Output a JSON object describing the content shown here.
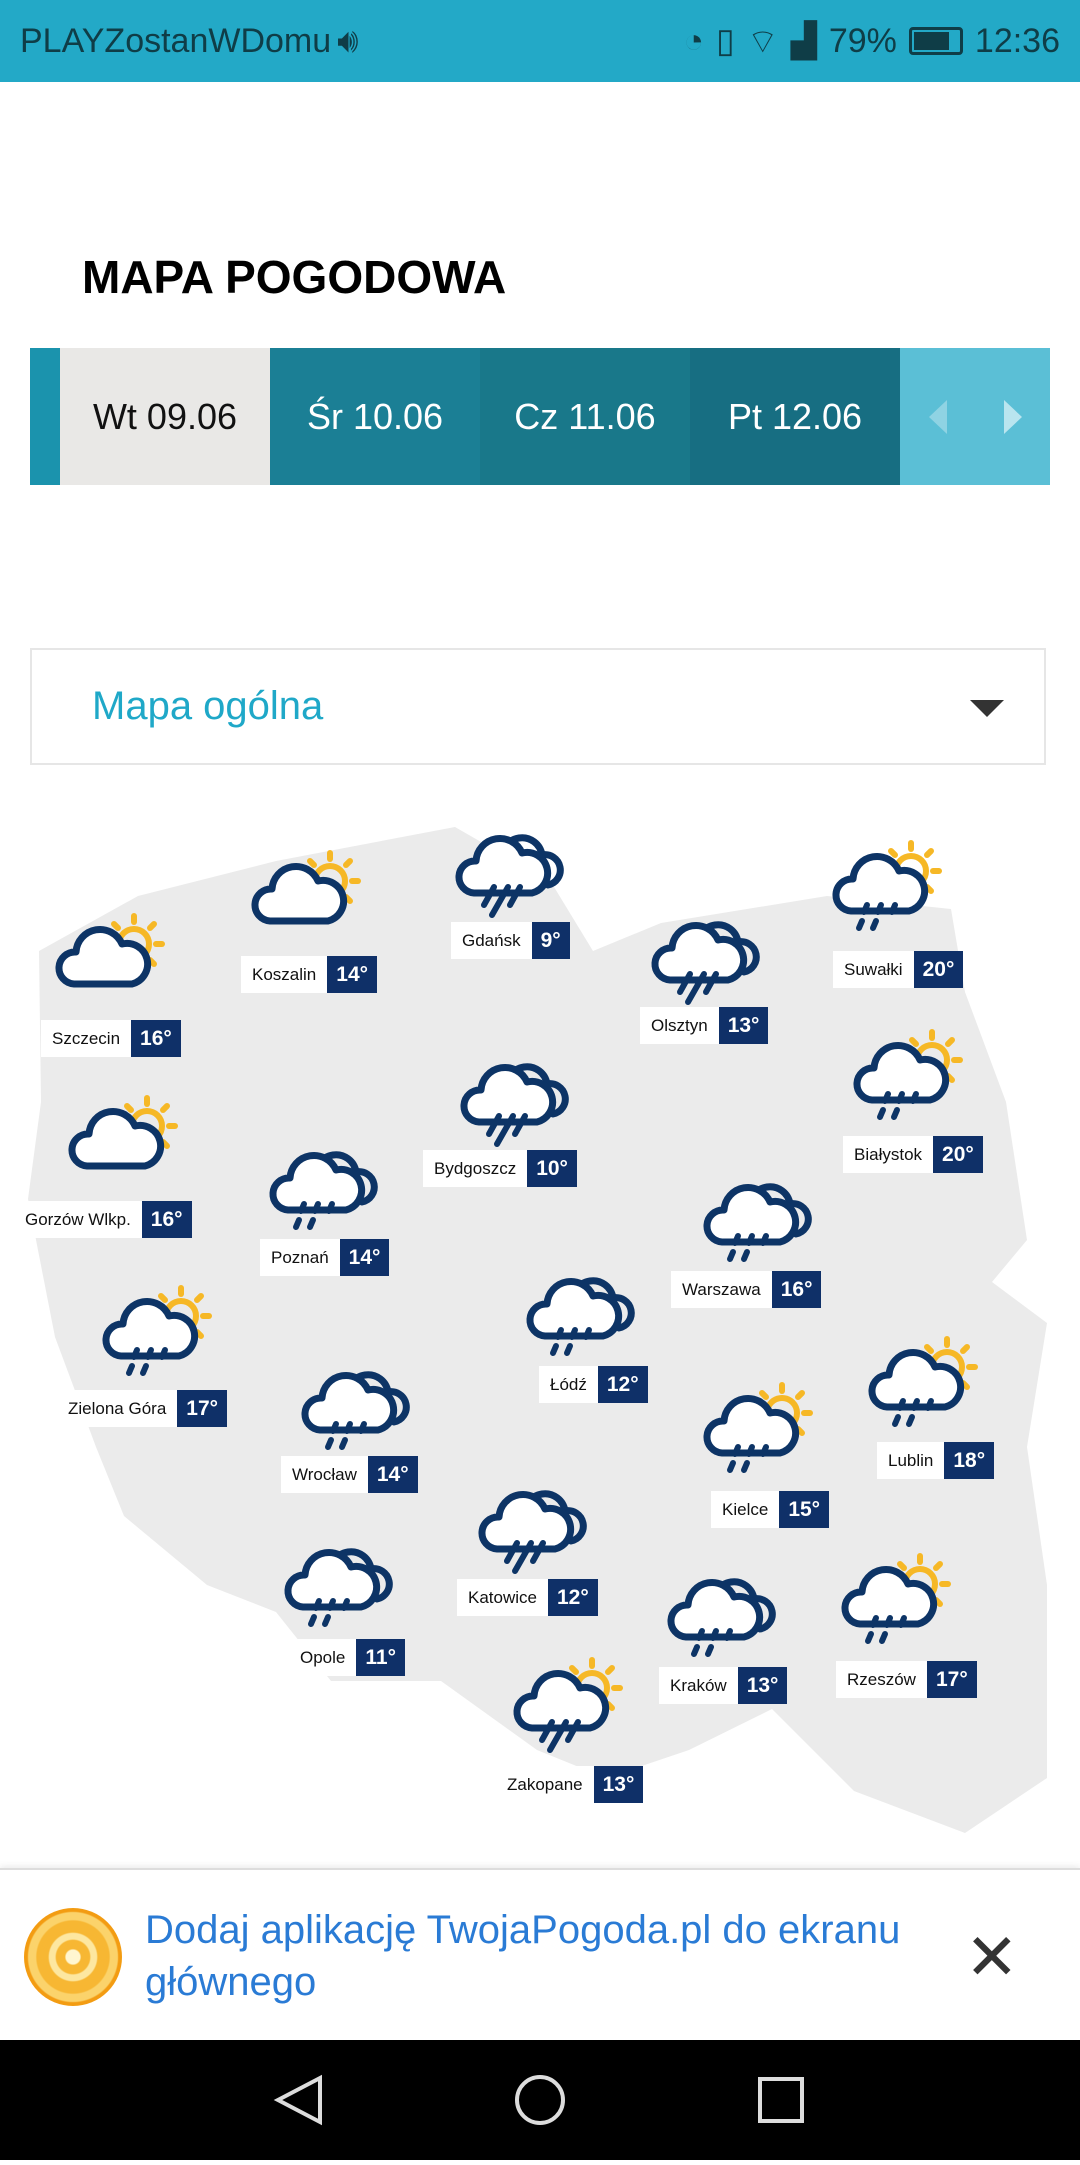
{
  "status_bar": {
    "carrier": "PLAYZostanWDomu",
    "battery": "79%",
    "time": "12:36",
    "icons": [
      "volume-icon",
      "data-saver-icon",
      "vibrate-icon",
      "wifi-icon",
      "signal-icon",
      "battery-icon"
    ]
  },
  "page": {
    "title": "MAPA POGODOWA"
  },
  "tabs": [
    {
      "label": "Wt 09.06",
      "active": true
    },
    {
      "label": "Śr 10.06"
    },
    {
      "label": "Cz 11.06"
    },
    {
      "label": "Pt 12.06"
    }
  ],
  "dropdown": {
    "selected": "Mapa ogólna"
  },
  "colors": {
    "accent": "#23a9c7",
    "temp_bg": "#0f3068",
    "icon": "#0d3466",
    "sun": "#f6b826",
    "link": "#2a7bd5"
  },
  "cities": [
    {
      "name": "Gdańsk",
      "temp": "9°",
      "icon": "heavy-rain"
    },
    {
      "name": "Koszalin",
      "temp": "14°",
      "icon": "cloud-sun"
    },
    {
      "name": "Szczecin",
      "temp": "16°",
      "icon": "cloud-sun"
    },
    {
      "name": "Olsztyn",
      "temp": "13°",
      "icon": "heavy-rain"
    },
    {
      "name": "Suwałki",
      "temp": "20°",
      "icon": "sun-rain"
    },
    {
      "name": "Bydgoszcz",
      "temp": "10°",
      "icon": "heavy-rain"
    },
    {
      "name": "Białystok",
      "temp": "20°",
      "icon": "sun-rain"
    },
    {
      "name": "Gorzów Wlkp.",
      "temp": "16°",
      "icon": "cloud-sun"
    },
    {
      "name": "Poznań",
      "temp": "14°",
      "icon": "rain"
    },
    {
      "name": "Warszawa",
      "temp": "16°",
      "icon": "rain"
    },
    {
      "name": "Łódź",
      "temp": "12°",
      "icon": "rain"
    },
    {
      "name": "Zielona Góra",
      "temp": "17°",
      "icon": "sun-rain"
    },
    {
      "name": "Lublin",
      "temp": "18°",
      "icon": "sun-rain"
    },
    {
      "name": "Wrocław",
      "temp": "14°",
      "icon": "rain"
    },
    {
      "name": "Kielce",
      "temp": "15°",
      "icon": "sun-rain"
    },
    {
      "name": "Katowice",
      "temp": "12°",
      "icon": "heavy-rain"
    },
    {
      "name": "Opole",
      "temp": "11°",
      "icon": "rain"
    },
    {
      "name": "Kraków",
      "temp": "13°",
      "icon": "rain"
    },
    {
      "name": "Rzeszów",
      "temp": "17°",
      "icon": "sun-rain"
    },
    {
      "name": "Zakopane",
      "temp": "13°",
      "icon": "sun-heavy-rain"
    }
  ],
  "banner": {
    "text": "Dodaj aplikację TwojaPogoda.pl do ekranu głównego",
    "close": "✕"
  },
  "nav": {
    "buttons": [
      "back",
      "home",
      "recents"
    ]
  }
}
